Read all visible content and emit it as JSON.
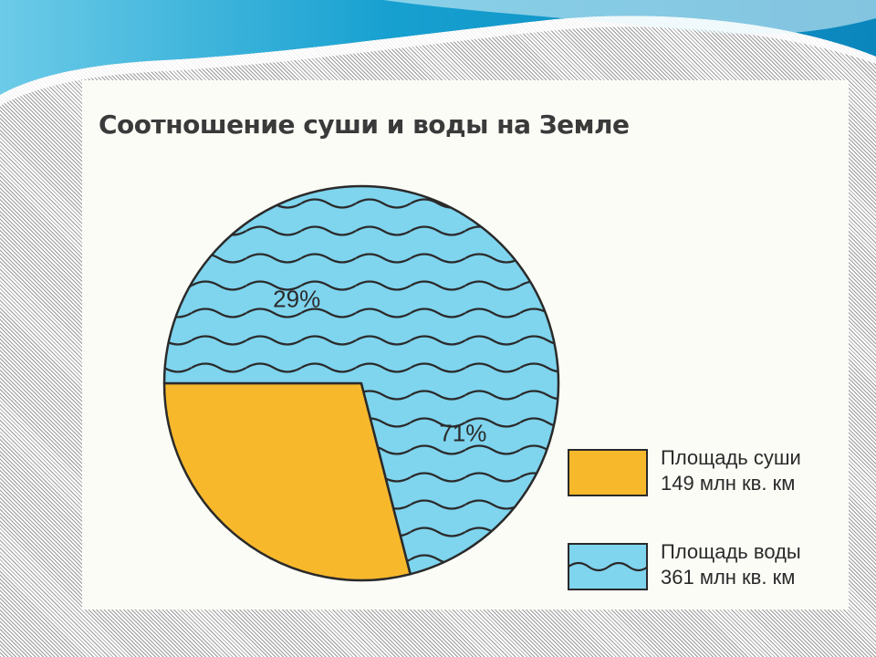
{
  "colors": {
    "land": "#f7b82c",
    "water": "#7fd4ee",
    "outline": "#2a2a2a",
    "wave_header": "#1a9fcf"
  },
  "chart_data": {
    "type": "pie",
    "title": "Соотношение суши и воды на Земле",
    "slices": [
      {
        "key": "land",
        "value": 29,
        "label": "29%",
        "legend_line1": "Площадь суши",
        "legend_line2": "149 млн кв. км",
        "pattern": "solid"
      },
      {
        "key": "water",
        "value": 71,
        "label": "71%",
        "legend_line1": "Площадь воды",
        "legend_line2": "361 млн кв. км",
        "pattern": "waves"
      }
    ],
    "legend_position": "bottom-right"
  }
}
